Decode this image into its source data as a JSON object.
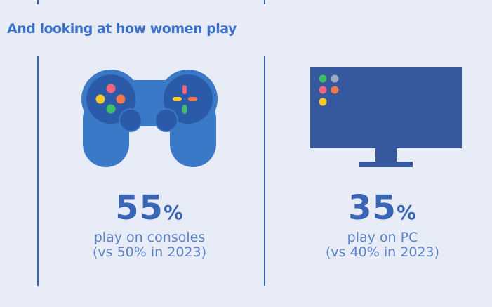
{
  "heading": "And looking at how women play",
  "stats": [
    {
      "value": "55",
      "unit": "%",
      "line1": "play on consoles",
      "line2": "(vs 50% in 2023)",
      "icon": "gamepad-icon"
    },
    {
      "value": "35",
      "unit": "%",
      "line1": "play on PC",
      "line2": "(vs 40% in 2023)",
      "icon": "monitor-icon"
    }
  ],
  "colors": {
    "background": "#e8ecf6",
    "accent": "#3a63b8",
    "gamepad_body": "#3a78c8",
    "gamepad_dark": "#2b5aa8",
    "monitor": "#35589f",
    "dot_pink": "#f0647e",
    "dot_orange": "#f4784a",
    "dot_yellow": "#f5c72a",
    "dot_green": "#3fbf6a",
    "dot_gray": "#a0a8b8"
  }
}
